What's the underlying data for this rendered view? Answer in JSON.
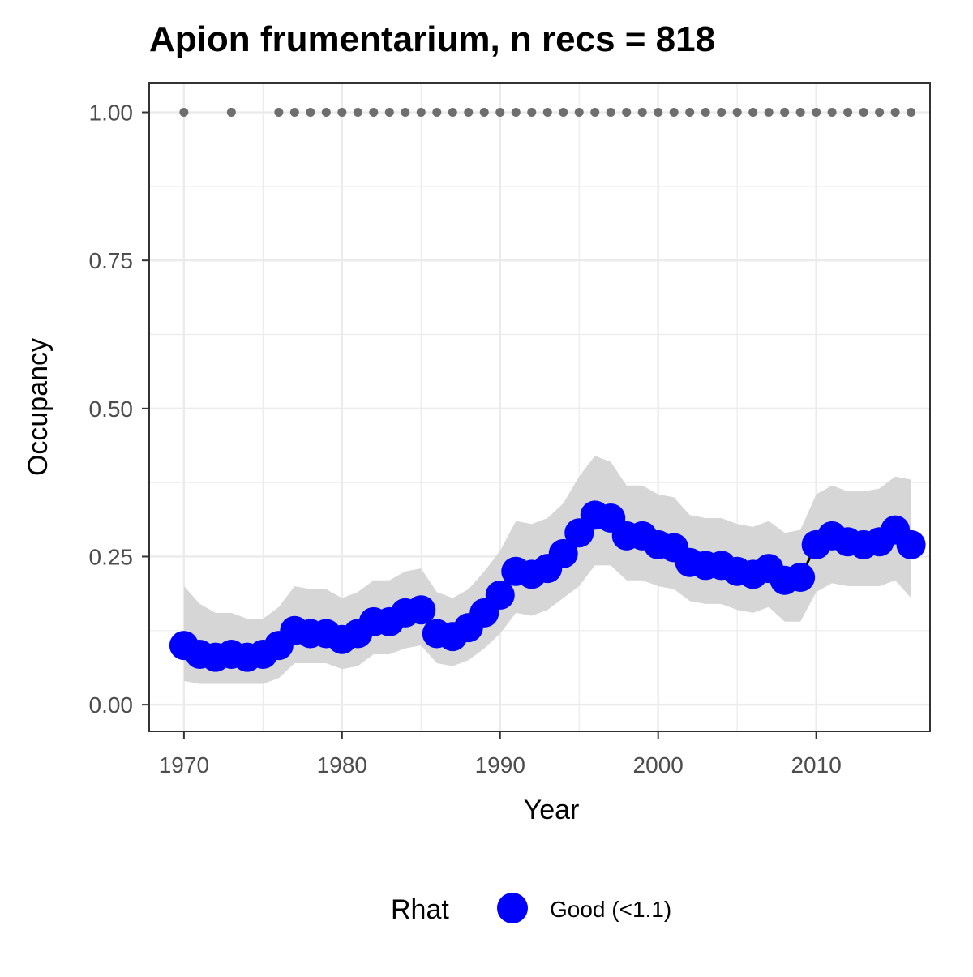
{
  "chart_data": {
    "type": "line",
    "title": "Apion frumentarium, n recs = 818",
    "xlabel": "Year",
    "ylabel": "Occupancy",
    "xlim": [
      1967.8,
      2017.2
    ],
    "ylim": [
      -0.045,
      1.05
    ],
    "x_ticks": [
      1970,
      1980,
      1990,
      2000,
      2010
    ],
    "x_tick_labels": [
      "1970",
      "1980",
      "1990",
      "2000",
      "2010"
    ],
    "y_ticks": [
      0,
      0.25,
      0.5,
      0.75,
      1.0
    ],
    "y_tick_labels": [
      "0.00",
      "0.25",
      "0.50",
      "0.75",
      "1.00"
    ],
    "grid": true,
    "legend": {
      "title": "Rhat",
      "position": "bottom",
      "entries": [
        "Good (<1.1)"
      ]
    },
    "colors": {
      "points": "#0000ff",
      "ribbon": "#d6d6d6",
      "line": "#000000",
      "record_dots": "#6e6e6e",
      "grid": "#ebebeb",
      "panel_border": "#333333"
    },
    "series": [
      {
        "x": [
          1970,
          1971,
          1972,
          1973,
          1974,
          1975,
          1976,
          1977,
          1978,
          1979,
          1980,
          1981,
          1982,
          1983,
          1984,
          1985,
          1986,
          1987,
          1988,
          1989,
          1990,
          1991,
          1992,
          1993,
          1994,
          1995,
          1996,
          1997,
          1998,
          1999,
          2000,
          2001,
          2002,
          2003,
          2004,
          2005,
          2006,
          2007,
          2008,
          2009,
          2010,
          2011,
          2012,
          2013,
          2014,
          2015,
          2016
        ],
        "y": [
          0.1,
          0.085,
          0.08,
          0.085,
          0.08,
          0.085,
          0.1,
          0.125,
          0.12,
          0.12,
          0.11,
          0.12,
          0.14,
          0.14,
          0.155,
          0.16,
          0.12,
          0.115,
          0.13,
          0.155,
          0.185,
          0.225,
          0.22,
          0.23,
          0.255,
          0.29,
          0.32,
          0.315,
          0.285,
          0.285,
          0.27,
          0.265,
          0.24,
          0.235,
          0.235,
          0.225,
          0.22,
          0.23,
          0.21,
          0.215,
          0.27,
          0.285,
          0.275,
          0.27,
          0.275,
          0.295,
          0.27
        ],
        "lower": [
          0.04,
          0.035,
          0.035,
          0.035,
          0.035,
          0.035,
          0.045,
          0.07,
          0.07,
          0.07,
          0.06,
          0.065,
          0.085,
          0.085,
          0.095,
          0.1,
          0.07,
          0.065,
          0.075,
          0.095,
          0.12,
          0.155,
          0.15,
          0.16,
          0.18,
          0.2,
          0.235,
          0.235,
          0.21,
          0.21,
          0.2,
          0.195,
          0.175,
          0.17,
          0.17,
          0.16,
          0.155,
          0.165,
          0.14,
          0.14,
          0.19,
          0.205,
          0.2,
          0.2,
          0.2,
          0.21,
          0.18
        ],
        "upper": [
          0.2,
          0.17,
          0.155,
          0.155,
          0.145,
          0.145,
          0.165,
          0.2,
          0.195,
          0.195,
          0.18,
          0.19,
          0.21,
          0.21,
          0.225,
          0.23,
          0.19,
          0.18,
          0.195,
          0.225,
          0.26,
          0.31,
          0.305,
          0.315,
          0.34,
          0.385,
          0.42,
          0.41,
          0.37,
          0.37,
          0.355,
          0.35,
          0.32,
          0.315,
          0.315,
          0.305,
          0.3,
          0.31,
          0.29,
          0.295,
          0.355,
          0.37,
          0.36,
          0.36,
          0.365,
          0.385,
          0.38
        ]
      }
    ],
    "record_years": [
      1970,
      1973,
      1976,
      1977,
      1978,
      1979,
      1980,
      1981,
      1982,
      1983,
      1984,
      1985,
      1986,
      1987,
      1988,
      1989,
      1990,
      1991,
      1992,
      1993,
      1994,
      1995,
      1996,
      1997,
      1998,
      1999,
      2000,
      2001,
      2002,
      2003,
      2004,
      2005,
      2006,
      2007,
      2008,
      2009,
      2010,
      2011,
      2012,
      2013,
      2014,
      2015,
      2016
    ],
    "record_y": 1.0
  }
}
